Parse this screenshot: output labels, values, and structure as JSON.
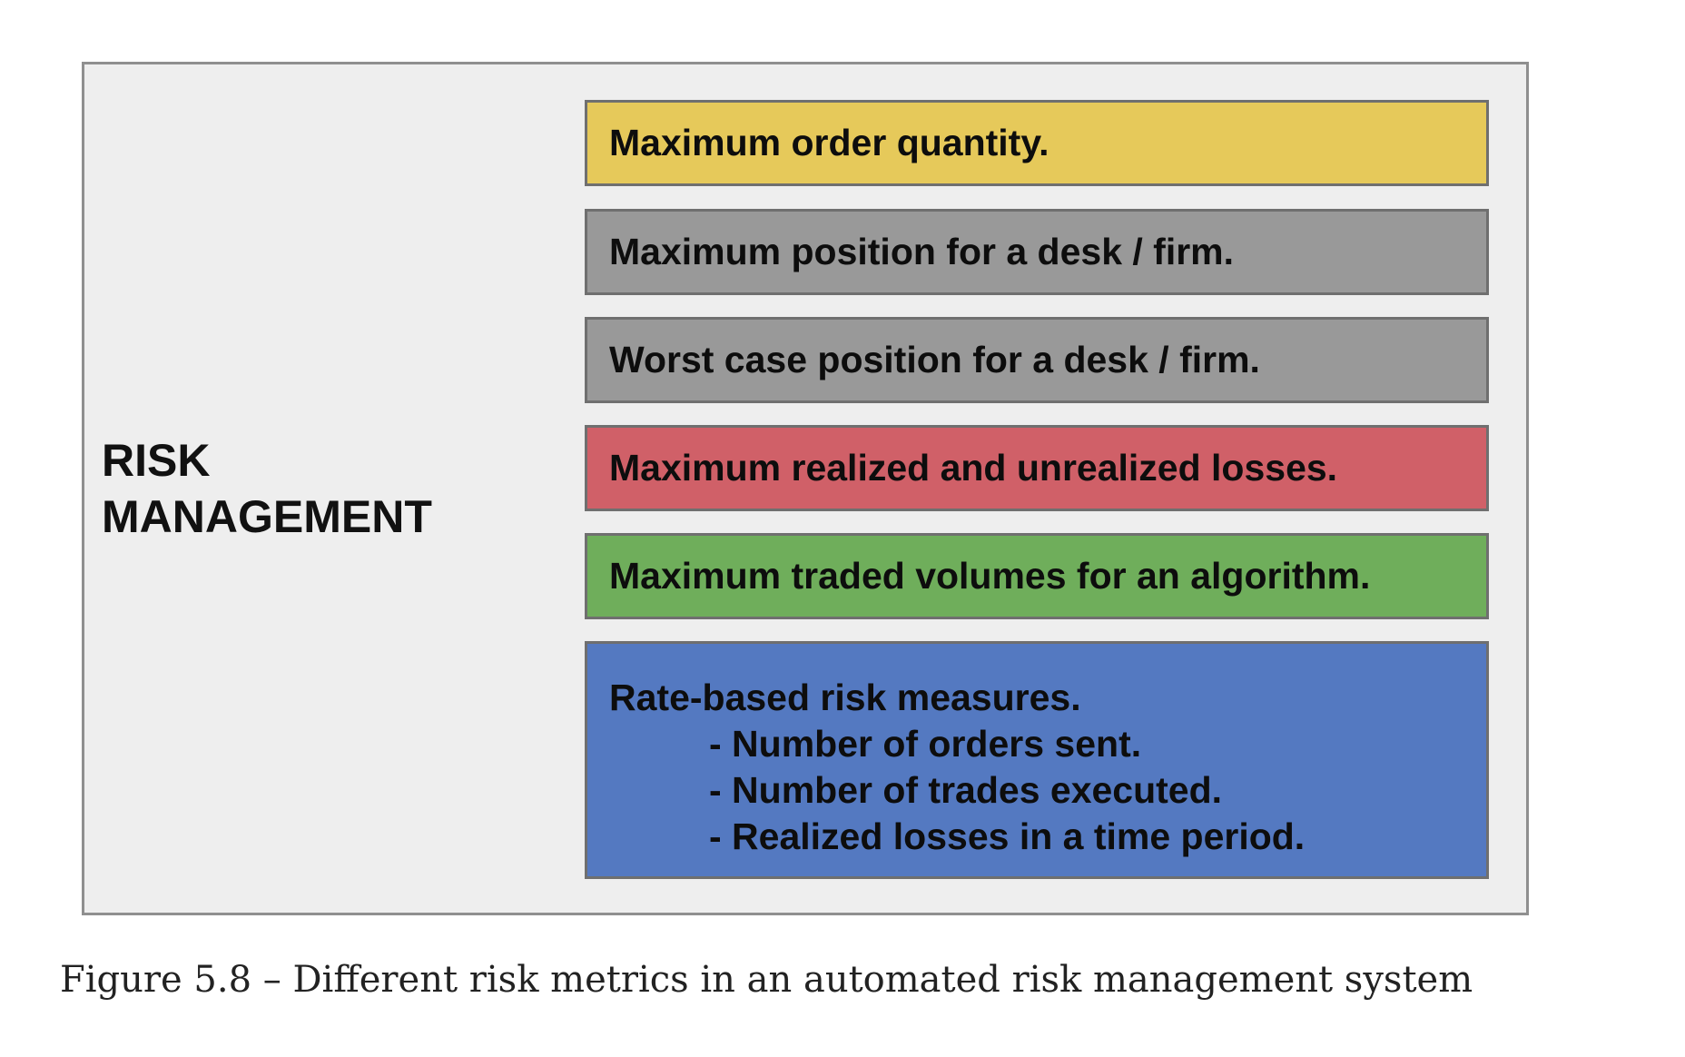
{
  "diagram": {
    "title_lines": [
      "RISK",
      "MANAGEMENT"
    ],
    "items": [
      {
        "text": "Maximum order quantity.",
        "color": "#e6c95a"
      },
      {
        "text": "Maximum position for a desk / firm.",
        "color": "#999999"
      },
      {
        "text": "Worst case position for a desk / firm.",
        "color": "#999999"
      },
      {
        "text": "Maximum realized and unrealized losses.",
        "color": "#d06068"
      },
      {
        "text": "Maximum traded volumes for an algorithm.",
        "color": "#6fae5b"
      }
    ],
    "rate_box": {
      "heading": "Rate-based risk measures.",
      "subitems": [
        "- Number of orders sent.",
        "- Number of trades executed.",
        "- Realized losses in a time period."
      ],
      "color": "#5479c1"
    },
    "background_color": "#eeeeee"
  },
  "caption": "Figure 5.8 – Different risk metrics in an automated risk management system"
}
